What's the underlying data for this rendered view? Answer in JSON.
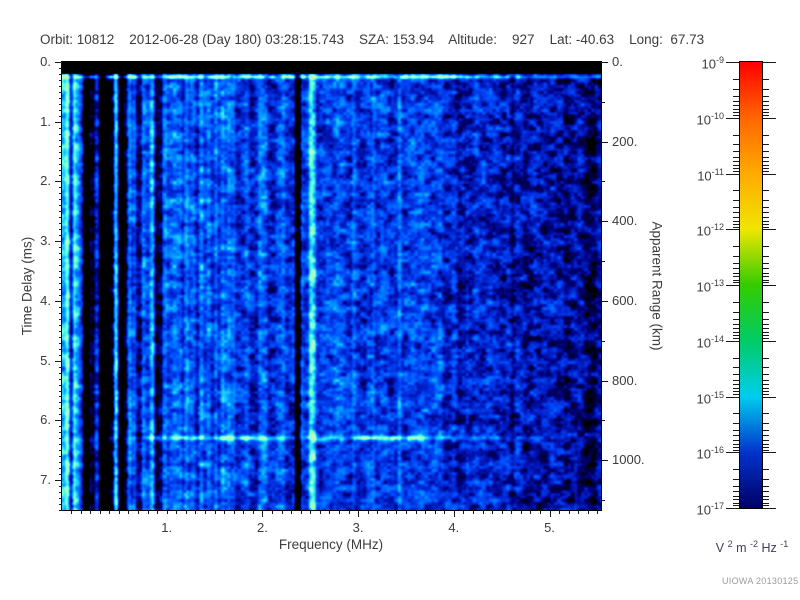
{
  "header": {
    "title_text": "Orbit: 10812    2012-06-28 (Day 180) 03:28:15.743    SZA: 153.94    Altitude:    927    Lat: -40.63    Long:  67.73",
    "orbit": "10812",
    "date": "2012-06-28",
    "day_of_year": "180",
    "time_utc": "03:28:15.743",
    "sza": "153.94",
    "altitude": "927",
    "lat": "-40.63",
    "long": "67.73"
  },
  "footer": {
    "credit": "UIOWA 20130125"
  },
  "chart_data": {
    "type": "heatmap",
    "title": "MARSIS-style ionogram spectrogram",
    "xlabel": "Frequency (MHz)",
    "xlim": [
      0.0,
      5.5
    ],
    "xticks": [
      1,
      2,
      3,
      4,
      5
    ],
    "xtick_labels": [
      "1.",
      "2.",
      "3.",
      "4.",
      "5."
    ],
    "x_minor_step": 0.1,
    "ylabel": "Time Delay (ms)",
    "ylim": [
      0.0,
      7.5
    ],
    "y_increases_downward": true,
    "yticks": [
      0,
      1,
      2,
      3,
      4,
      5,
      6,
      7
    ],
    "ytick_labels": [
      "0.",
      "1.",
      "2.",
      "3.",
      "4.",
      "5.",
      "6.",
      "7."
    ],
    "y_minor_step": 0.1,
    "y2label": "Apparent Range (km)",
    "y2lim": [
      0,
      1127
    ],
    "y2ticks": [
      0,
      200,
      400,
      600,
      800,
      1000
    ],
    "y2tick_labels": [
      "0.",
      "200.",
      "400.",
      "600.",
      "800.",
      "1000."
    ],
    "y2_minor_step": 100,
    "grid": false,
    "legend": "none",
    "colorbar": {
      "scale": "log10",
      "top_value": "1e-9",
      "bottom_value": "1e-17",
      "tick_exponents": [
        "-9",
        "-10",
        "-11",
        "-12",
        "-13",
        "-14",
        "-15",
        "-16",
        "-17"
      ],
      "tick_base": "10",
      "gradient_top_to_bottom": [
        "#ff0000",
        "#ff6600",
        "#ffaa00",
        "#efe600",
        "#33cc00",
        "#00cc66",
        "#00cdee",
        "#0133cc",
        "#000066"
      ],
      "unit_parts": [
        {
          "base": "V",
          "exp": "2"
        },
        {
          "base": " m",
          "exp": "-2"
        },
        {
          "base": " Hz",
          "exp": "-1"
        }
      ]
    },
    "palette_black_to_bright": [
      [
        0.0,
        "#000000"
      ],
      [
        0.1,
        "#000028"
      ],
      [
        0.22,
        "#000078"
      ],
      [
        0.35,
        "#001ec8"
      ],
      [
        0.5,
        "#0050ff"
      ],
      [
        0.65,
        "#0096ff"
      ],
      [
        0.78,
        "#28d7ff"
      ],
      [
        0.88,
        "#5affdc"
      ],
      [
        1.0,
        "#b4ffc8"
      ]
    ],
    "features": [
      {
        "name": "transmit-blanking-band",
        "time_ms": [
          0.0,
          0.2
        ],
        "freq_mhz": [
          0.0,
          5.5
        ],
        "appearance": "solid black bar across top"
      },
      {
        "name": "receiver-turn-on-line",
        "time_ms": 0.25,
        "freq_mhz": [
          0.0,
          5.5
        ],
        "appearance": "bright cyan horizontal line, dimmer above 4 MHz"
      },
      {
        "name": "low-frequency-striped-band",
        "freq_mhz": [
          0.2,
          0.9
        ],
        "appearance": "dark band with alternating black and cyan vertical stripes"
      },
      {
        "name": "interference-dropout-line",
        "freq_mhz": 2.35,
        "appearance": "black vertical line, full height"
      },
      {
        "name": "interference-bright-line",
        "freq_mhz": 2.5,
        "appearance": "bright cyan vertical line, full height"
      },
      {
        "name": "surface-echo-streak",
        "time_ms": 6.3,
        "apparent_range_km": 940,
        "freq_mhz": [
          0.9,
          5.0
        ],
        "appearance": "bright cyan-green horizontal streak, brightest 1.0-2.3 MHz and 3.0-3.8 MHz"
      },
      {
        "name": "high-frequency-attenuation",
        "freq_mhz": [
          4.3,
          5.5
        ],
        "appearance": "darker noise, black patches"
      },
      {
        "name": "background",
        "appearance": "blue speckle noise near 1e-16 V2 m-2 Hz-1"
      }
    ]
  }
}
